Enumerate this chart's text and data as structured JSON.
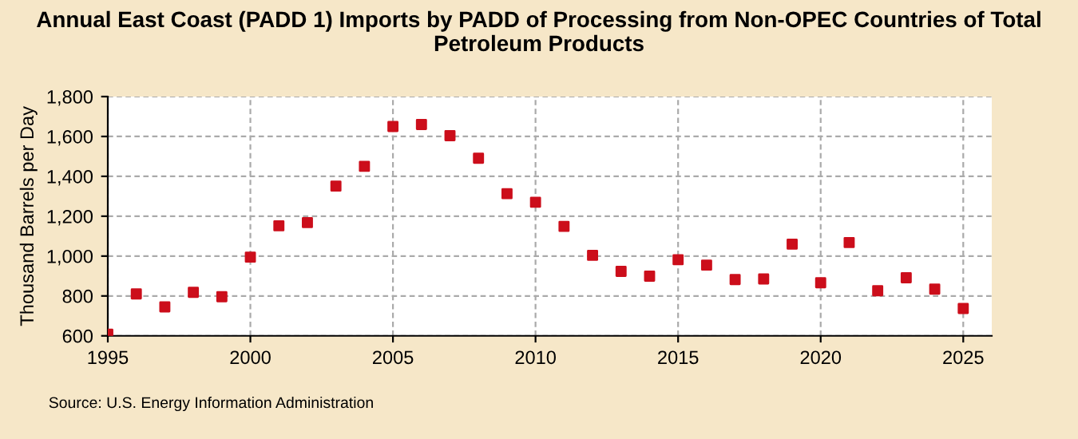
{
  "chart_data": {
    "type": "scatter",
    "title": "Annual East Coast (PADD 1) Imports by PADD of Processing from Non-OPEC Countries of Total Petroleum Products",
    "ylabel": "Thousand Barrels per Day",
    "x": [
      1995,
      1996,
      1997,
      1998,
      1999,
      2000,
      2001,
      2002,
      2003,
      2004,
      2005,
      2006,
      2007,
      2008,
      2009,
      2010,
      2011,
      2012,
      2013,
      2014,
      2015,
      2016,
      2017,
      2018,
      2019,
      2020,
      2021,
      2022,
      2023,
      2024,
      2025
    ],
    "series": [
      {
        "color": "#cc0e1b",
        "values": [
          608,
          810,
          745,
          818,
          796,
          995,
          1152,
          1168,
          1351,
          1450,
          1650,
          1660,
          1604,
          1491,
          1313,
          1270,
          1149,
          1004,
          923,
          899,
          982,
          955,
          882,
          885,
          1060,
          866,
          1068,
          826,
          891,
          834,
          737
        ]
      }
    ],
    "xlim": [
      1995,
      2026
    ],
    "xticks": [
      1995,
      2000,
      2005,
      2010,
      2015,
      2020,
      2025
    ],
    "ylim": [
      600,
      1800
    ],
    "yticks": [
      {
        "value": 600,
        "label": "600"
      },
      {
        "value": 800,
        "label": "800"
      },
      {
        "value": 1000,
        "label": "1,000"
      },
      {
        "value": 1200,
        "label": "1,200"
      },
      {
        "value": 1400,
        "label": "1,400"
      },
      {
        "value": 1600,
        "label": "1,600"
      },
      {
        "value": 1800,
        "label": "1,800"
      }
    ],
    "grid": true,
    "marker": "square",
    "annotations": [
      "Source: U.S. Energy Information Administration"
    ]
  }
}
